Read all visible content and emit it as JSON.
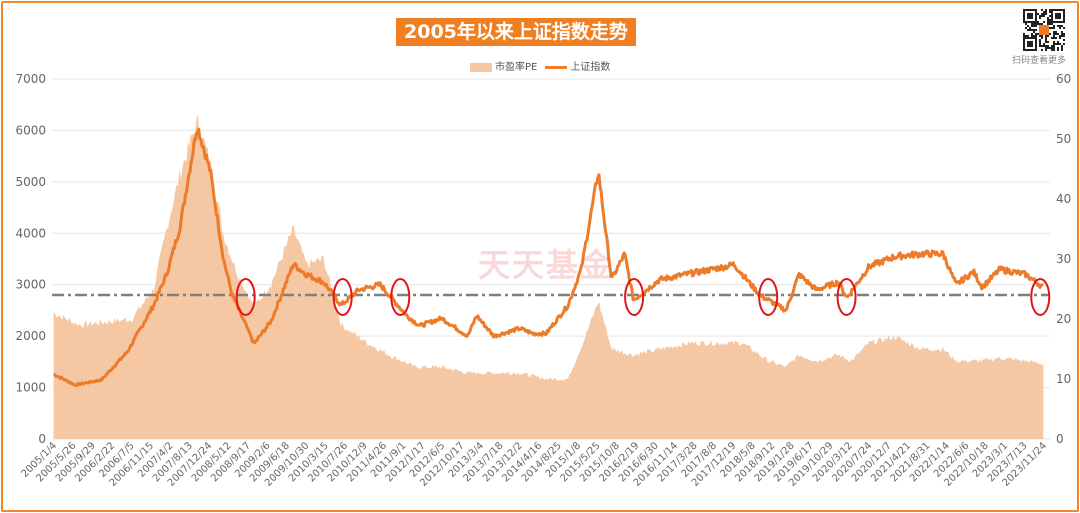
{
  "title": "2005年以来上证指数走势",
  "qr_caption": "扫码查看更多",
  "watermark": "天天基金",
  "colors": {
    "border": "#f08a2c",
    "title_bg": "#f07f22",
    "pe_fill": "#f6c7a3",
    "index_line": "#ec7b2a",
    "ref_line": "#7f7f7f",
    "circle": "#e0161a"
  },
  "chart_data": {
    "type": "line",
    "legend": [
      "市盈率PE",
      "上证指数"
    ],
    "legend_position": "top",
    "grid": true,
    "ylim_left": [
      0,
      7000
    ],
    "ylim_right": [
      0,
      60
    ],
    "y_ticks_left": [
      "0",
      "1000",
      "2000",
      "3000",
      "4000",
      "5000",
      "6000",
      "7000"
    ],
    "y_ticks_right": [
      "0",
      "10",
      "20",
      "30",
      "40",
      "50",
      "60"
    ],
    "x_ticks": [
      "2005/1/4",
      "2005/5/26",
      "2005/9/29",
      "2006/2/22",
      "2006/7/5",
      "2006/11/15",
      "2007/4/2",
      "2007/8/13",
      "2007/12/24",
      "2008/5/12",
      "2008/9/17",
      "2009/2/6",
      "2009/6/18",
      "2009/10/30",
      "2010/3/15",
      "2010/7/26",
      "2010/12/9",
      "2011/4/26",
      "2011/9/1",
      "2012/1/17",
      "2012/6/5",
      "2012/10/17",
      "2013/3/4",
      "2013/7/18",
      "2013/12/2",
      "2014/4/16",
      "2014/8/25",
      "2015/1/8",
      "2015/5/25",
      "2015/10/8",
      "2016/2/19",
      "2016/6/30",
      "2016/11/14",
      "2017/3/28",
      "2017/8/8",
      "2017/12/19",
      "2018/5/8",
      "2018/9/12",
      "2019/1/28",
      "2019/6/17",
      "2019/10/29",
      "2020/3/12",
      "2020/7/24",
      "2020/12/7",
      "2021/4/21",
      "2021/8/31",
      "2022/1/14",
      "2022/6/6",
      "2022/10/18",
      "2023/3/1",
      "2023/7/13",
      "2023/11/24"
    ],
    "series": [
      {
        "name": "市盈率PE",
        "type": "area",
        "axis": "right",
        "x": [
          "2005-01",
          "2005-07",
          "2006-01",
          "2006-07",
          "2006-12",
          "2007-03",
          "2007-06",
          "2007-10",
          "2008-01",
          "2008-04",
          "2008-07",
          "2008-11",
          "2009-03",
          "2009-08",
          "2009-11",
          "2010-03",
          "2010-07",
          "2011-01",
          "2011-06",
          "2011-12",
          "2012-06",
          "2012-12",
          "2013-06",
          "2013-12",
          "2014-06",
          "2014-11",
          "2015-03",
          "2015-06",
          "2015-09",
          "2016-02",
          "2016-08",
          "2017-03",
          "2017-11",
          "2018-03",
          "2018-09",
          "2019-01",
          "2019-04",
          "2019-08",
          "2020-01",
          "2020-04",
          "2020-08",
          "2021-02",
          "2021-08",
          "2022-01",
          "2022-04",
          "2022-10",
          "2023-02",
          "2023-08",
          "2023-12"
        ],
        "values": [
          21,
          19,
          19.5,
          20,
          25,
          35,
          44,
          53,
          46,
          34,
          28,
          22,
          26,
          35,
          29,
          30,
          19,
          16,
          14,
          12,
          12,
          11,
          11,
          11,
          10,
          10,
          17,
          23,
          15,
          14,
          15,
          16,
          16,
          16,
          13,
          12,
          14,
          13,
          14,
          13,
          16,
          17,
          15,
          15,
          13,
          13,
          13.5,
          13,
          12.5
        ]
      },
      {
        "name": "上证指数",
        "type": "line",
        "axis": "left",
        "x": [
          "2005-01",
          "2005-06",
          "2005-12",
          "2006-06",
          "2006-12",
          "2007-03",
          "2007-06",
          "2007-10",
          "2008-01",
          "2008-04",
          "2008-06",
          "2008-11",
          "2009-03",
          "2009-08",
          "2009-11",
          "2010-03",
          "2010-07",
          "2010-11",
          "2011-04",
          "2011-10",
          "2012-01",
          "2012-06",
          "2012-12",
          "2013-02",
          "2013-06",
          "2013-12",
          "2014-03",
          "2014-06",
          "2014-11",
          "2015-02",
          "2015-06",
          "2015-09",
          "2015-12",
          "2016-02",
          "2016-08",
          "2017-05",
          "2017-11",
          "2018-01",
          "2018-07",
          "2019-01",
          "2019-04",
          "2019-08",
          "2020-01",
          "2020-03",
          "2020-08",
          "2021-02",
          "2021-08",
          "2022-01",
          "2022-04",
          "2022-08",
          "2022-10",
          "2023-02",
          "2023-08",
          "2023-12"
        ],
        "values": [
          1260,
          1050,
          1150,
          1700,
          2600,
          3200,
          4100,
          6100,
          5200,
          3500,
          2800,
          1850,
          2300,
          3400,
          3200,
          3050,
          2600,
          2900,
          3000,
          2400,
          2200,
          2350,
          2000,
          2400,
          2000,
          2150,
          2050,
          2050,
          2600,
          3300,
          5200,
          3100,
          3600,
          2700,
          3100,
          3250,
          3350,
          3400,
          2800,
          2500,
          3200,
          2900,
          3050,
          2750,
          3350,
          3550,
          3600,
          3600,
          3000,
          3250,
          2950,
          3300,
          3200,
          2950
        ]
      }
    ],
    "reference_line": {
      "value": 2800,
      "axis": "left"
    },
    "highlight_circles": [
      "2008/9/17",
      "2010/7/26",
      "2011/9/1",
      "2016/2/19",
      "2018/9/12",
      "2020/3/12",
      "2023/11/24"
    ]
  }
}
